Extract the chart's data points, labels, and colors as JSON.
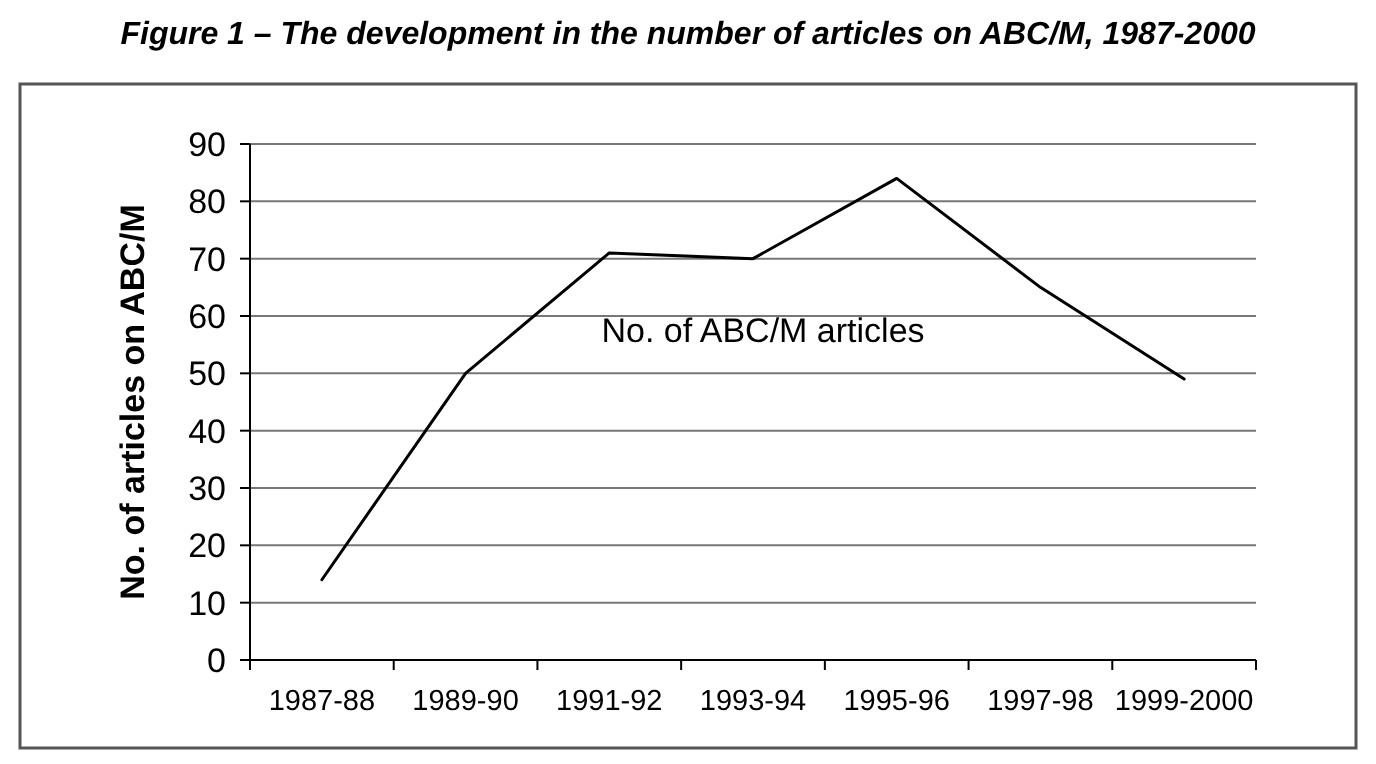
{
  "chart_data": {
    "type": "line",
    "title": "Figure 1 – The development in the number of articles on ABC/M, 1987-2000",
    "ylabel": "No. of articles on ABC/M",
    "categories": [
      "1987-88",
      "1989-90",
      "1991-92",
      "1993-94",
      "1995-96",
      "1997-98",
      "1999-2000"
    ],
    "series": [
      {
        "name": "No. of ABC/M articles",
        "color": "#000000",
        "values": [
          14,
          50,
          71,
          70,
          84,
          65,
          49
        ]
      }
    ],
    "ylim": [
      0,
      90
    ],
    "yticks": [
      0,
      10,
      20,
      30,
      40,
      50,
      60,
      70,
      80,
      90
    ],
    "grid": "y",
    "marker": "none",
    "line_style": "solid"
  }
}
